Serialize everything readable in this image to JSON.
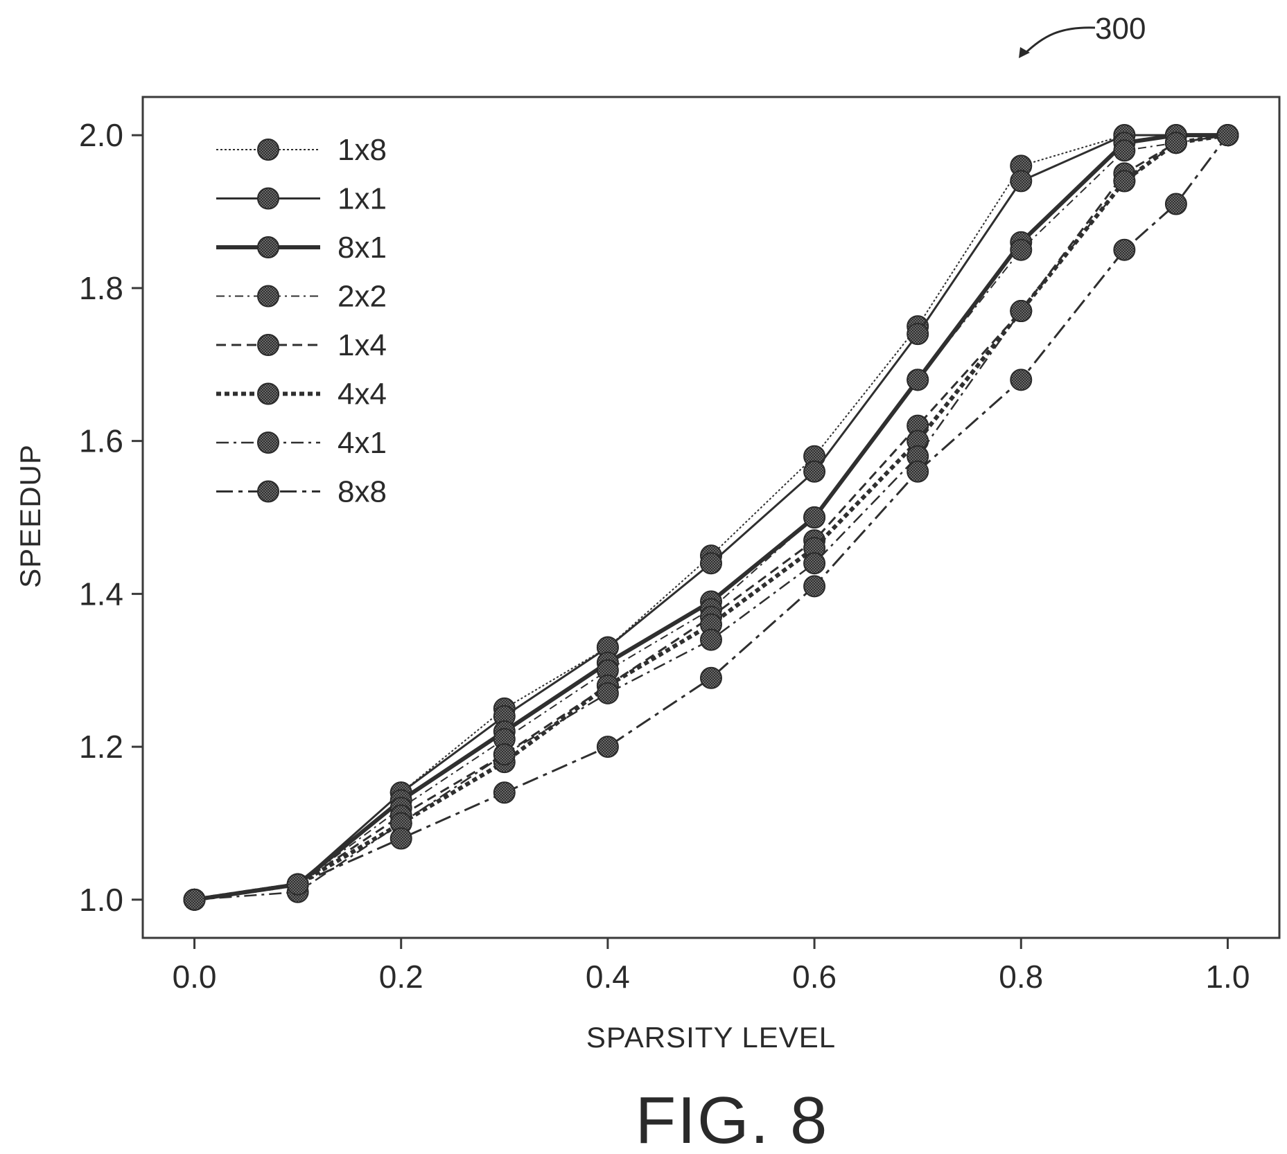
{
  "figure": {
    "reference_number": "300",
    "caption": "FIG. 8"
  },
  "chart_data": {
    "type": "line",
    "xlabel": "SPARSITY LEVEL",
    "ylabel": "SPEEDUP",
    "xlim": [
      -0.05,
      1.05
    ],
    "ylim": [
      0.95,
      2.05
    ],
    "xticks": [
      "0.0",
      "0.2",
      "0.4",
      "0.6",
      "0.8",
      "1.0"
    ],
    "yticks": [
      "1.0",
      "1.2",
      "1.4",
      "1.6",
      "1.8",
      "2.0"
    ],
    "grid": false,
    "legend_position": "top-left",
    "x": [
      0.0,
      0.1,
      0.2,
      0.3,
      0.4,
      0.5,
      0.6,
      0.7,
      0.8,
      0.9,
      0.95,
      1.0
    ],
    "series": [
      {
        "name": "1x8",
        "style": "dotted-fine",
        "values": [
          1.0,
          1.02,
          1.14,
          1.25,
          1.33,
          1.45,
          1.58,
          1.75,
          1.96,
          2.0,
          2.0,
          2.0
        ]
      },
      {
        "name": "1x1",
        "style": "solid",
        "values": [
          1.0,
          1.02,
          1.14,
          1.24,
          1.33,
          1.44,
          1.56,
          1.74,
          1.94,
          2.0,
          2.0,
          2.0
        ]
      },
      {
        "name": "8x1",
        "style": "solid-thick",
        "values": [
          1.0,
          1.02,
          1.13,
          1.22,
          1.31,
          1.39,
          1.5,
          1.68,
          1.86,
          1.99,
          2.0,
          2.0
        ]
      },
      {
        "name": "2x2",
        "style": "dash-dot-fine",
        "values": [
          1.0,
          1.02,
          1.12,
          1.21,
          1.3,
          1.38,
          1.5,
          1.68,
          1.85,
          1.98,
          1.99,
          2.0
        ]
      },
      {
        "name": "1x4",
        "style": "dashed",
        "values": [
          1.0,
          1.02,
          1.11,
          1.19,
          1.28,
          1.37,
          1.47,
          1.62,
          1.77,
          1.95,
          1.99,
          2.0
        ]
      },
      {
        "name": "4x4",
        "style": "dotted-thick",
        "values": [
          1.0,
          1.02,
          1.1,
          1.18,
          1.28,
          1.36,
          1.46,
          1.6,
          1.77,
          1.94,
          1.99,
          2.0
        ]
      },
      {
        "name": "4x1",
        "style": "dash-dot",
        "values": [
          1.0,
          1.01,
          1.1,
          1.19,
          1.27,
          1.34,
          1.44,
          1.58,
          1.77,
          1.94,
          1.99,
          2.0
        ]
      },
      {
        "name": "8x8",
        "style": "dash-dot-long",
        "values": [
          1.0,
          1.02,
          1.08,
          1.14,
          1.2,
          1.29,
          1.41,
          1.56,
          1.68,
          1.85,
          1.91,
          2.0
        ]
      }
    ]
  }
}
